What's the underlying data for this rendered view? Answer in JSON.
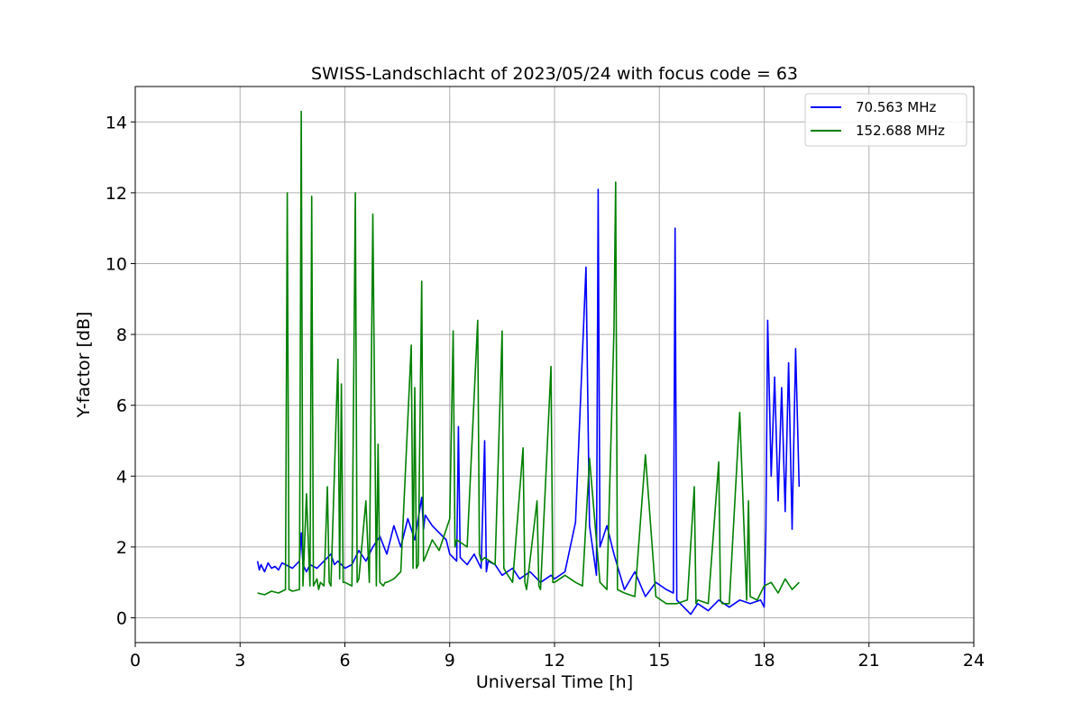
{
  "chart_data": {
    "type": "line",
    "title": "SWISS-Landschlacht of 2023/05/24 with focus code = 63",
    "xlabel": "Universal Time [h]",
    "ylabel": "Y-factor [dB]",
    "xlim": [
      0,
      24
    ],
    "ylim": [
      -0.7,
      15
    ],
    "xticks": [
      0,
      3,
      6,
      9,
      12,
      15,
      18,
      21,
      24
    ],
    "yticks": [
      0,
      2,
      4,
      6,
      8,
      10,
      12,
      14
    ],
    "xtick_labels": [
      "0",
      "3",
      "6",
      "9",
      "12",
      "15",
      "18",
      "21",
      "24"
    ],
    "ytick_labels": [
      "0",
      "2",
      "4",
      "6",
      "8",
      "10",
      "12",
      "14"
    ],
    "grid": true,
    "legend_position": "top-right",
    "series": [
      {
        "name": "  70.563 MHz",
        "color": "#0000ff",
        "x": [
          3.5,
          3.55,
          3.6,
          3.7,
          3.8,
          3.9,
          4.0,
          4.1,
          4.2,
          4.3,
          4.5,
          4.7,
          4.75,
          4.8,
          4.9,
          5.0,
          5.2,
          5.4,
          5.6,
          5.7,
          5.8,
          6.0,
          6.2,
          6.4,
          6.6,
          6.8,
          7.0,
          7.2,
          7.4,
          7.6,
          7.8,
          8.0,
          8.2,
          8.25,
          8.3,
          8.5,
          8.7,
          8.9,
          9.0,
          9.2,
          9.25,
          9.3,
          9.5,
          9.7,
          9.9,
          10.0,
          10.05,
          10.1,
          10.3,
          10.5,
          10.8,
          11.0,
          11.3,
          11.6,
          11.9,
          12.0,
          12.3,
          12.6,
          12.9,
          13.0,
          13.2,
          13.25,
          13.3,
          13.5,
          13.7,
          14.0,
          14.3,
          14.6,
          14.9,
          15.2,
          15.4,
          15.45,
          15.5,
          15.7,
          15.9,
          16.1,
          16.4,
          16.7,
          17.0,
          17.3,
          17.6,
          17.9,
          18.0,
          18.05,
          18.1,
          18.2,
          18.3,
          18.4,
          18.5,
          18.6,
          18.7,
          18.8,
          18.9,
          19.0
        ],
        "y": [
          1.6,
          1.35,
          1.5,
          1.3,
          1.55,
          1.4,
          1.45,
          1.35,
          1.55,
          1.5,
          1.4,
          1.6,
          2.4,
          1.5,
          1.3,
          1.5,
          1.4,
          1.6,
          1.8,
          1.5,
          1.6,
          1.4,
          1.5,
          1.9,
          1.6,
          2.0,
          2.3,
          1.8,
          2.6,
          2.0,
          2.8,
          2.2,
          3.4,
          2.5,
          2.9,
          2.6,
          2.4,
          2.2,
          1.8,
          1.6,
          5.4,
          1.7,
          1.5,
          1.8,
          1.4,
          5.0,
          1.3,
          1.6,
          1.5,
          1.2,
          1.4,
          1.1,
          1.3,
          1.0,
          1.2,
          1.1,
          1.3,
          2.7,
          9.9,
          2.6,
          1.2,
          12.1,
          2.0,
          2.6,
          1.8,
          0.8,
          1.3,
          0.6,
          1.0,
          0.8,
          0.7,
          11.0,
          0.5,
          0.3,
          0.1,
          0.4,
          0.2,
          0.5,
          0.3,
          0.5,
          0.4,
          0.5,
          0.3,
          2.5,
          8.4,
          4.0,
          6.8,
          3.3,
          6.5,
          3.0,
          7.2,
          2.5,
          7.6,
          3.7
        ]
      },
      {
        "name": "152.688 MHz",
        "color": "#008000",
        "x": [
          3.5,
          3.7,
          3.9,
          4.1,
          4.3,
          4.35,
          4.4,
          4.5,
          4.7,
          4.75,
          4.8,
          4.9,
          5.0,
          5.05,
          5.1,
          5.2,
          5.25,
          5.3,
          5.4,
          5.5,
          5.55,
          5.6,
          5.8,
          5.85,
          5.9,
          5.95,
          6.0,
          6.2,
          6.3,
          6.35,
          6.4,
          6.6,
          6.7,
          6.8,
          6.9,
          6.95,
          7.0,
          7.1,
          7.15,
          7.2,
          7.4,
          7.6,
          7.9,
          7.95,
          8.0,
          8.05,
          8.1,
          8.2,
          8.25,
          8.3,
          8.5,
          8.7,
          9.0,
          9.1,
          9.15,
          9.2,
          9.5,
          9.8,
          9.85,
          9.9,
          10.0,
          10.3,
          10.5,
          10.55,
          10.6,
          10.8,
          11.1,
          11.15,
          11.2,
          11.5,
          11.55,
          11.6,
          11.9,
          11.95,
          12.0,
          12.3,
          12.6,
          12.8,
          13.0,
          13.3,
          13.5,
          13.7,
          13.75,
          13.8,
          14.0,
          14.3,
          14.6,
          14.9,
          15.2,
          15.5,
          15.8,
          16.0,
          16.05,
          16.1,
          16.4,
          16.7,
          16.75,
          16.8,
          17.0,
          17.3,
          17.5,
          17.55,
          17.6,
          17.8,
          18.0,
          18.2,
          18.4,
          18.6,
          18.8,
          19.0
        ],
        "y": [
          0.7,
          0.65,
          0.75,
          0.7,
          0.8,
          12.0,
          0.8,
          0.75,
          0.8,
          14.3,
          0.9,
          3.5,
          0.9,
          11.9,
          0.9,
          1.1,
          0.8,
          1.0,
          0.9,
          3.7,
          1.0,
          0.9,
          7.3,
          1.1,
          6.6,
          1.0,
          1.0,
          0.9,
          12.0,
          1.0,
          1.1,
          3.3,
          1.0,
          11.4,
          0.9,
          4.9,
          1.0,
          0.9,
          1.0,
          1.0,
          1.1,
          1.3,
          7.7,
          1.4,
          6.5,
          1.4,
          1.5,
          9.5,
          1.6,
          1.7,
          2.2,
          1.9,
          2.8,
          8.1,
          2.0,
          2.2,
          2.0,
          8.4,
          1.8,
          1.6,
          1.7,
          1.5,
          8.1,
          1.4,
          1.3,
          1.0,
          4.8,
          1.0,
          0.8,
          3.3,
          0.9,
          0.8,
          7.1,
          1.0,
          1.0,
          1.2,
          1.0,
          0.9,
          4.5,
          1.0,
          0.8,
          8.1,
          12.3,
          0.8,
          0.7,
          0.6,
          4.6,
          0.6,
          0.4,
          0.4,
          0.5,
          3.7,
          0.4,
          0.5,
          0.4,
          4.4,
          0.5,
          0.4,
          0.4,
          5.8,
          0.5,
          3.3,
          0.6,
          0.5,
          0.9,
          1.0,
          0.7,
          1.1,
          0.8,
          1.0
        ]
      }
    ]
  }
}
